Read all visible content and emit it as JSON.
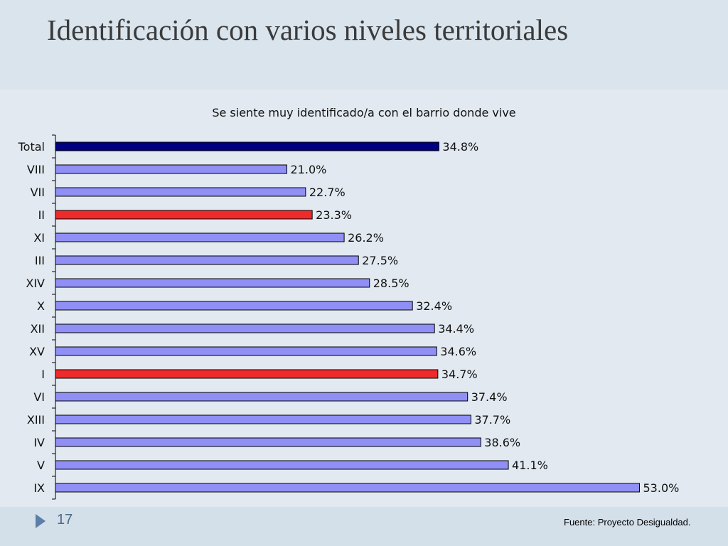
{
  "slide": {
    "title": "Identificación con varios niveles territoriales",
    "page_number": "17",
    "source": "Fuente: Proyecto Desigualdad."
  },
  "colors": {
    "total_bar": "#000080",
    "default_bar": "#8f8ff5",
    "highlight_bar": "#ee2a2a",
    "background": "#dbe5ee"
  },
  "icons": {
    "slide_marker": "triangle-right-icon"
  },
  "chart_data": {
    "type": "bar",
    "orientation": "horizontal",
    "title": "Se siente muy identificado/a con el barrio donde vive",
    "xlabel": "",
    "ylabel": "",
    "xlim": [
      0,
      55
    ],
    "grid": false,
    "legend": "none",
    "categories": [
      "Total",
      "VIII",
      "VII",
      "II",
      "XI",
      "III",
      "XIV",
      "X",
      "XII",
      "XV",
      "I",
      "VI",
      "XIII",
      "IV",
      "V",
      "IX"
    ],
    "values": [
      34.8,
      21.0,
      22.7,
      23.3,
      26.2,
      27.5,
      28.5,
      32.4,
      34.4,
      34.6,
      34.7,
      37.4,
      37.7,
      38.6,
      41.1,
      53.0
    ],
    "value_labels": [
      "34.8%",
      "21.0%",
      "22.7%",
      "23.3%",
      "26.2%",
      "27.5%",
      "28.5%",
      "32.4%",
      "34.4%",
      "34.6%",
      "34.7%",
      "37.4%",
      "37.7%",
      "38.6%",
      "41.1%",
      "53.0%"
    ],
    "bar_kind": [
      "total",
      "default",
      "default",
      "highlight",
      "default",
      "default",
      "default",
      "default",
      "default",
      "default",
      "highlight",
      "default",
      "default",
      "default",
      "default",
      "default"
    ]
  }
}
